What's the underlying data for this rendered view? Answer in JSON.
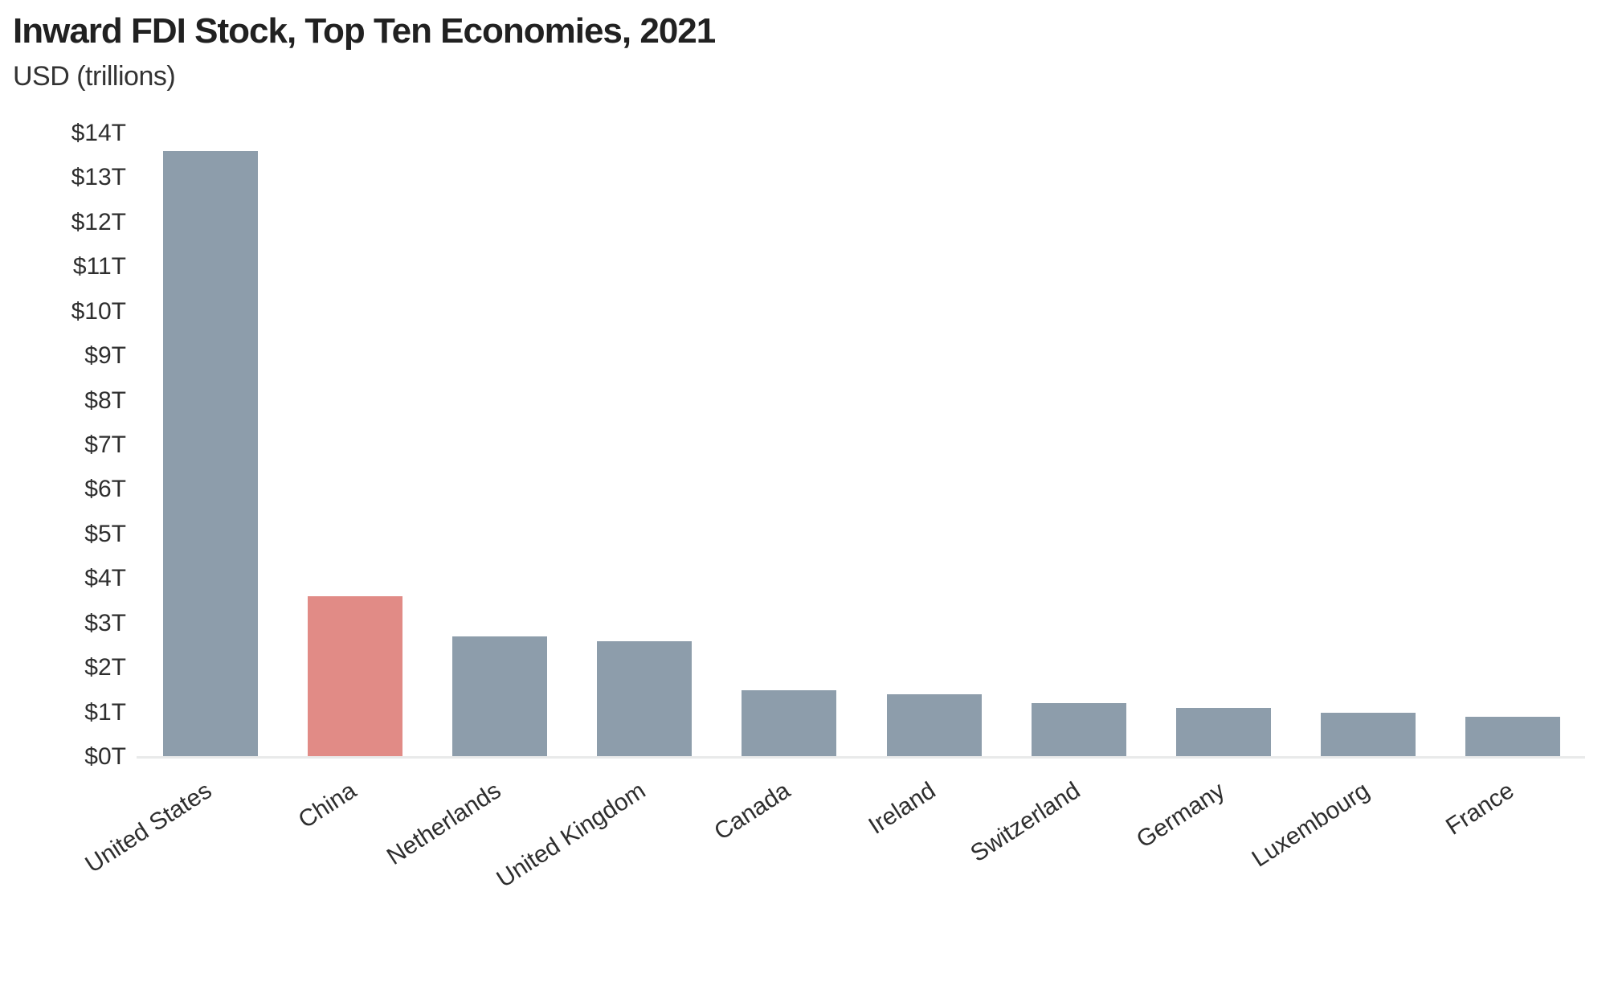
{
  "chart_data": {
    "type": "bar",
    "title": "Inward FDI Stock, Top Ten Economies, 2021",
    "subtitle": "USD (trillions)",
    "categories": [
      "United States",
      "China",
      "Netherlands",
      "United Kingdom",
      "Canada",
      "Ireland",
      "Switzerland",
      "Germany",
      "Luxembourg",
      "France"
    ],
    "values": [
      13.6,
      3.6,
      2.7,
      2.6,
      1.5,
      1.4,
      1.2,
      1.1,
      1.0,
      0.9
    ],
    "unit": "USD trillions",
    "xlabel": "",
    "ylabel": "USD (trillions)",
    "ylim": [
      0,
      14
    ],
    "ytick_step": 1,
    "ytick_labels": [
      "$0T",
      "$1T",
      "$2T",
      "$3T",
      "$4T",
      "$5T",
      "$6T",
      "$7T",
      "$8T",
      "$9T",
      "$10T",
      "$11T",
      "$12T",
      "$13T",
      "$14T"
    ],
    "grid": false,
    "legend": false,
    "highlight_category": "China",
    "colors": {
      "bar": "#8d9dab",
      "highlight_bar": "#e18b86",
      "axis_line": "#e9eaea",
      "title_text": "#212121",
      "subtitle_text": "#333333",
      "tick_text": "#2e2e2e"
    }
  }
}
